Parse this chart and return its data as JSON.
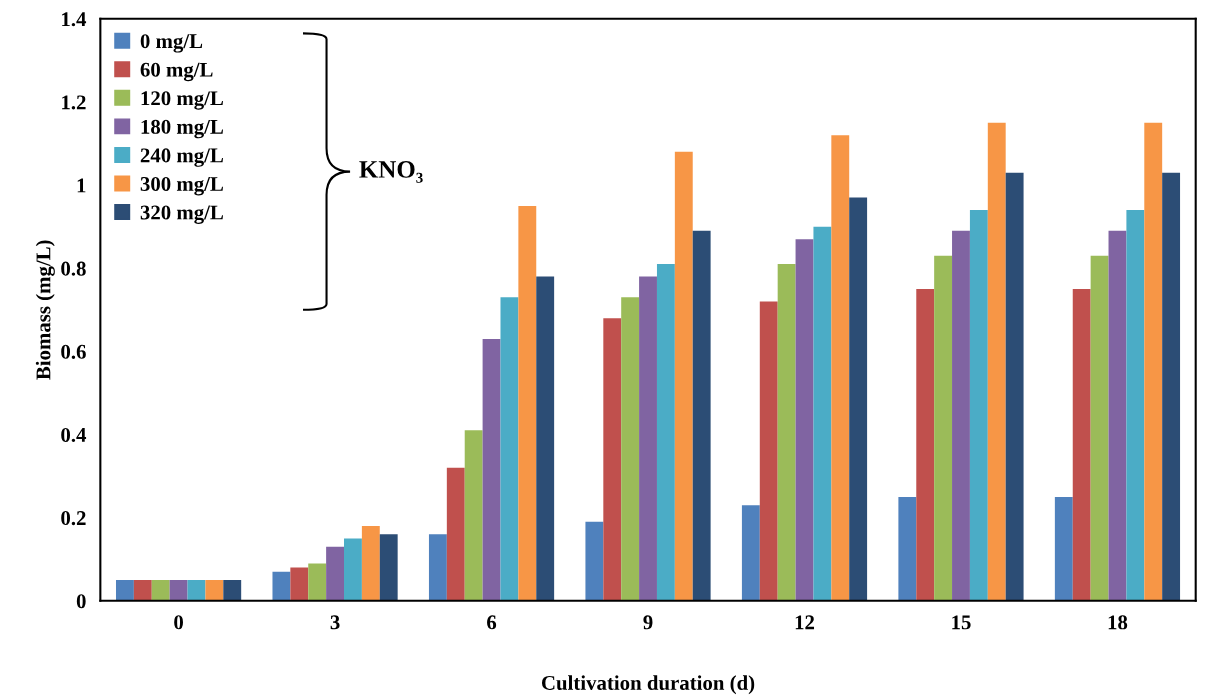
{
  "chart_data": {
    "type": "bar",
    "xlabel": "Cultivation duration (d)",
    "ylabel": "Biomass (mg/L)",
    "categories": [
      "0",
      "3",
      "6",
      "9",
      "12",
      "15",
      "18"
    ],
    "series": [
      {
        "name": "0 mg/L",
        "color": "#4f81bd",
        "values": [
          0.05,
          0.07,
          0.16,
          0.19,
          0.23,
          0.25,
          0.25
        ]
      },
      {
        "name": "60 mg/L",
        "color": "#c0504d",
        "values": [
          0.05,
          0.08,
          0.32,
          0.68,
          0.72,
          0.75,
          0.75
        ]
      },
      {
        "name": "120 mg/L",
        "color": "#9bbb59",
        "values": [
          0.05,
          0.09,
          0.41,
          0.73,
          0.81,
          0.83,
          0.83
        ]
      },
      {
        "name": "180 mg/L",
        "color": "#8064a2",
        "values": [
          0.05,
          0.13,
          0.63,
          0.78,
          0.87,
          0.89,
          0.89
        ]
      },
      {
        "name": "240 mg/L",
        "color": "#4bacc6",
        "values": [
          0.05,
          0.15,
          0.73,
          0.81,
          0.9,
          0.94,
          0.94
        ]
      },
      {
        "name": "300 mg/L",
        "color": "#f79646",
        "values": [
          0.05,
          0.18,
          0.95,
          1.08,
          1.12,
          1.15,
          1.15
        ]
      },
      {
        "name": "320 mg/L",
        "color": "#2c4d75",
        "values": [
          0.05,
          0.16,
          0.78,
          0.89,
          0.97,
          1.03,
          1.03
        ]
      }
    ],
    "ylim": [
      0,
      1.4
    ],
    "yticks": [
      0,
      {
        "value": 0.2,
        "label": "0.2"
      },
      {
        "value": 0.4,
        "label": "0.4"
      },
      {
        "value": 0.6,
        "label": "0.6"
      },
      {
        "value": 0.8,
        "label": "0.8"
      },
      1,
      {
        "value": 1.2,
        "label": "1.2"
      },
      {
        "value": 1.4,
        "label": "1.4"
      }
    ],
    "legend": "top left",
    "grid": false,
    "annotations": [
      "KNO₃"
    ]
  }
}
